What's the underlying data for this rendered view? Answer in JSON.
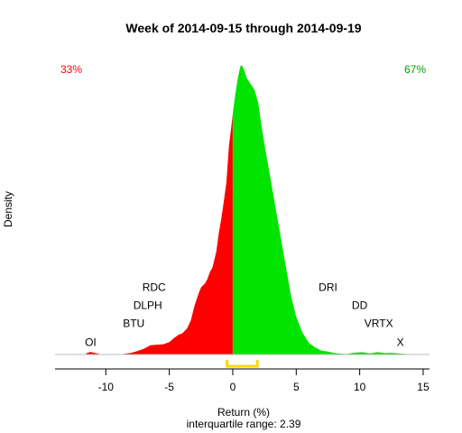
{
  "chart_data": {
    "type": "area",
    "title": "Week of 2014-09-15 through 2014-09-19",
    "xlabel": "Return (%)",
    "ylabel": "Density",
    "subtitle": "interquartile range: 2.39",
    "xlim": [
      -14,
      15.5
    ],
    "ylim": [
      0,
      1
    ],
    "x_ticks": [
      -10,
      -5,
      0,
      5,
      10,
      15
    ],
    "split_at": 0,
    "colors": {
      "negative": "#ff0000",
      "positive": "#00e400",
      "iqr": "#ffd700",
      "baseline": "#bebebe"
    },
    "series": [
      {
        "values": [
          [
            -11.6,
            0
          ],
          [
            -11.5,
            0.005
          ],
          [
            -11.2,
            0.009
          ],
          [
            -10.9,
            0.006
          ],
          [
            -10.5,
            0.002
          ],
          [
            -10.0,
            0
          ],
          [
            -9.0,
            0
          ],
          [
            -8.6,
            0.002
          ],
          [
            -8.0,
            0.006
          ],
          [
            -7.5,
            0.012
          ],
          [
            -7.0,
            0.02
          ],
          [
            -6.5,
            0.032
          ],
          [
            -6.0,
            0.034
          ],
          [
            -5.5,
            0.035
          ],
          [
            -5.0,
            0.043
          ],
          [
            -4.6,
            0.058
          ],
          [
            -4.2,
            0.07
          ],
          [
            -4.0,
            0.072
          ],
          [
            -3.6,
            0.09
          ],
          [
            -3.3,
            0.118
          ],
          [
            -3.0,
            0.17
          ],
          [
            -2.7,
            0.21
          ],
          [
            -2.5,
            0.232
          ],
          [
            -2.2,
            0.245
          ],
          [
            -2.0,
            0.26
          ],
          [
            -1.8,
            0.285
          ],
          [
            -1.6,
            0.3
          ],
          [
            -1.3,
            0.355
          ],
          [
            -1.1,
            0.42
          ],
          [
            -0.9,
            0.47
          ],
          [
            -0.7,
            0.53
          ],
          [
            -0.5,
            0.595
          ],
          [
            -0.3,
            0.72
          ],
          [
            -0.1,
            0.79
          ],
          [
            0,
            0.83
          ],
          [
            0.2,
            0.9
          ],
          [
            0.4,
            0.955
          ],
          [
            0.6,
            0.995
          ],
          [
            0.7,
            1.0
          ],
          [
            0.9,
            0.982
          ],
          [
            1.1,
            0.955
          ],
          [
            1.4,
            0.935
          ],
          [
            1.7,
            0.915
          ],
          [
            2.0,
            0.87
          ],
          [
            2.3,
            0.78
          ],
          [
            2.6,
            0.7
          ],
          [
            3.0,
            0.6
          ],
          [
            3.4,
            0.5
          ],
          [
            3.8,
            0.4
          ],
          [
            4.2,
            0.3
          ],
          [
            4.6,
            0.2
          ],
          [
            5.0,
            0.13
          ],
          [
            5.5,
            0.075
          ],
          [
            6.0,
            0.04
          ],
          [
            6.5,
            0.024
          ],
          [
            7.0,
            0.013
          ],
          [
            7.5,
            0.01
          ],
          [
            8.0,
            0.005
          ],
          [
            8.5,
            0.003
          ],
          [
            9.0,
            0.002
          ],
          [
            9.5,
            0.006
          ],
          [
            10.2,
            0.008
          ],
          [
            10.8,
            0.004
          ],
          [
            11.4,
            0.008
          ],
          [
            12.0,
            0.005
          ],
          [
            12.5,
            0.006
          ],
          [
            13.3,
            0.003
          ],
          [
            14.0,
            0.001
          ],
          [
            14.3,
            0
          ]
        ]
      }
    ],
    "iqr": [
      -0.45,
      1.94
    ],
    "percent_below": "33%",
    "percent_above": "67%",
    "stock_labels": [
      {
        "text": "OI",
        "x": -11.2,
        "y": 0.042
      },
      {
        "text": "BTU",
        "x": -7.8,
        "y": 0.107
      },
      {
        "text": "DLPH",
        "x": -6.7,
        "y": 0.17
      },
      {
        "text": "RDC",
        "x": -6.2,
        "y": 0.232
      },
      {
        "text": "DRI",
        "x": 7.5,
        "y": 0.232
      },
      {
        "text": "DD",
        "x": 10.0,
        "y": 0.17
      },
      {
        "text": "VRTX",
        "x": 11.5,
        "y": 0.107
      },
      {
        "text": "X",
        "x": 13.2,
        "y": 0.042
      }
    ]
  }
}
